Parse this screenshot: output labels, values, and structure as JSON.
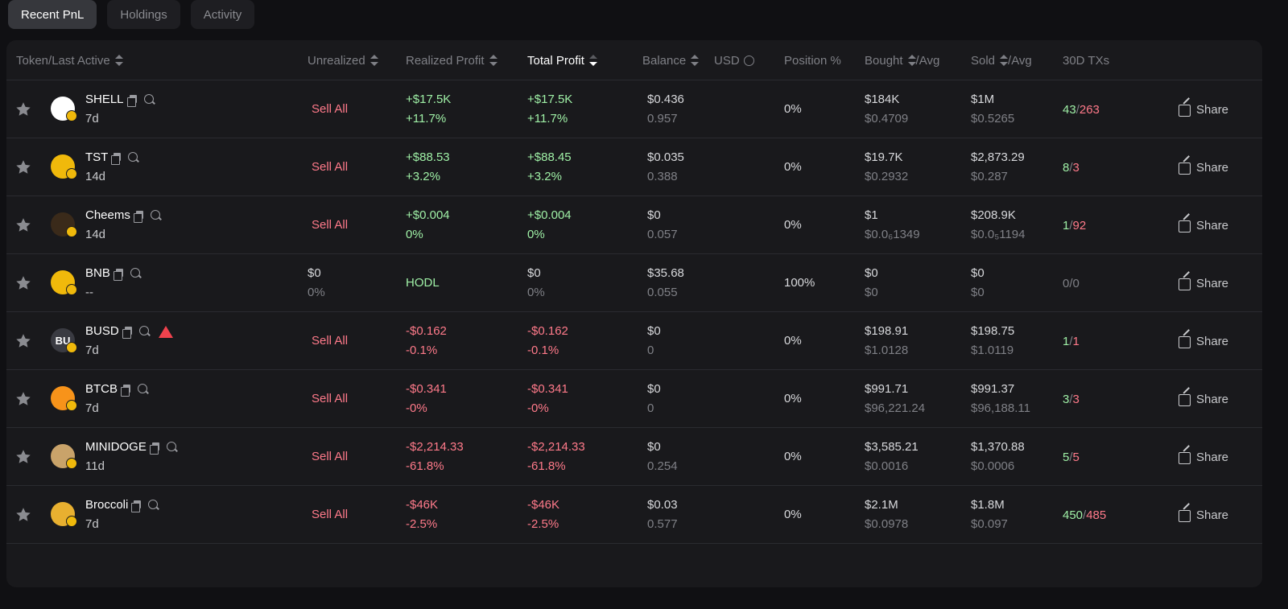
{
  "tabs": [
    {
      "label": "Recent PnL",
      "active": true
    },
    {
      "label": "Holdings",
      "active": false
    },
    {
      "label": "Activity",
      "active": false
    }
  ],
  "columns": {
    "token": "Token/Last Active",
    "unrealized": "Unrealized",
    "realized": "Realized Profit",
    "total": "Total Profit",
    "balance": "Balance",
    "usd": "USD",
    "position": "Position %",
    "bought": "Bought",
    "bought_avg": "/Avg",
    "sold": "Sold",
    "sold_avg": "/Avg",
    "txs": "30D TXs"
  },
  "colors": {
    "positive": "#9ff0a6",
    "negative": "#ff7a8a",
    "muted": "#7f8086",
    "chain_badge": "#f0b90b"
  },
  "rows": [
    {
      "token": "SHELL",
      "age": "7d",
      "avatar_icon": "shell-logo",
      "avatar_color": "#ffffff",
      "warning": false,
      "unrealized": "Sell All",
      "unrealized_sub": "",
      "unrealized_type": "sell",
      "realized": "+$17.5K",
      "realized_pct": "+11.7%",
      "realized_sign": "pos",
      "total": "+$17.5K",
      "total_pct": "+11.7%",
      "total_sign": "pos",
      "balance": "$0.436",
      "balance_amt": "0.957",
      "position": "0%",
      "bought": "$184K",
      "bought_avg": "$0.4709",
      "sold": "$1M",
      "sold_avg": "$0.5265",
      "tx_buy": "43",
      "tx_sell": "263",
      "tx_sep": "/",
      "share": "Share"
    },
    {
      "token": "TST",
      "age": "14d",
      "avatar_icon": "tst-logo",
      "avatar_color": "#f0b90b",
      "warning": false,
      "unrealized": "Sell All",
      "unrealized_sub": "",
      "unrealized_type": "sell",
      "realized": "+$88.53",
      "realized_pct": "+3.2%",
      "realized_sign": "pos",
      "total": "+$88.45",
      "total_pct": "+3.2%",
      "total_sign": "pos",
      "balance": "$0.035",
      "balance_amt": "0.388",
      "position": "0%",
      "bought": "$19.7K",
      "bought_avg": "$0.2932",
      "sold": "$2,873.29",
      "sold_avg": "$0.287",
      "tx_buy": "8",
      "tx_sell": "3",
      "tx_sep": "/",
      "share": "Share"
    },
    {
      "token": "Cheems",
      "age": "14d",
      "avatar_icon": "cheems-logo",
      "avatar_color": "#3a2a1a",
      "warning": false,
      "unrealized": "Sell All",
      "unrealized_sub": "",
      "unrealized_type": "sell",
      "realized": "+$0.004",
      "realized_pct": "0%",
      "realized_sign": "pos",
      "total": "+$0.004",
      "total_pct": "0%",
      "total_sign": "pos",
      "balance": "$0",
      "balance_amt": "0.057",
      "position": "0%",
      "bought": "$1",
      "bought_avg": "$0.0₆1349",
      "sold": "$208.9K",
      "sold_avg": "$0.0₅1194",
      "tx_buy": "1",
      "tx_sell": "92",
      "tx_sep": "/",
      "share": "Share"
    },
    {
      "token": "BNB",
      "age": "--",
      "avatar_icon": "bnb-logo",
      "avatar_color": "#f0b90b",
      "warning": false,
      "unrealized": "$0",
      "unrealized_sub": "0%",
      "unrealized_type": "value",
      "realized": "HODL",
      "realized_pct": "",
      "realized_sign": "pos",
      "total": "$0",
      "total_pct": "0%",
      "total_sign": "neutral",
      "balance": "$35.68",
      "balance_amt": "0.055",
      "position": "100%",
      "bought": "$0",
      "bought_avg": "$0",
      "sold": "$0",
      "sold_avg": "$0",
      "tx_buy": "0",
      "tx_sell": "0",
      "tx_sep": "/",
      "tx_neutral": true,
      "share": "Share"
    },
    {
      "token": "BUSD",
      "age": "7d",
      "avatar_icon": "busd-logo",
      "avatar_color": "#3a3b42",
      "avatar_text": "BU",
      "warning": true,
      "unrealized": "Sell All",
      "unrealized_sub": "",
      "unrealized_type": "sell",
      "realized": "-$0.162",
      "realized_pct": "-0.1%",
      "realized_sign": "neg",
      "total": "-$0.162",
      "total_pct": "-0.1%",
      "total_sign": "neg",
      "balance": "$0",
      "balance_amt": "0",
      "position": "0%",
      "bought": "$198.91",
      "bought_avg": "$1.0128",
      "sold": "$198.75",
      "sold_avg": "$1.0119",
      "tx_buy": "1",
      "tx_sell": "1",
      "tx_sep": "/",
      "share": "Share"
    },
    {
      "token": "BTCB",
      "age": "7d",
      "avatar_icon": "btcb-logo",
      "avatar_color": "#f7931a",
      "warning": false,
      "unrealized": "Sell All",
      "unrealized_sub": "",
      "unrealized_type": "sell",
      "realized": "-$0.341",
      "realized_pct": "-0%",
      "realized_sign": "neg",
      "total": "-$0.341",
      "total_pct": "-0%",
      "total_sign": "neg",
      "balance": "$0",
      "balance_amt": "0",
      "position": "0%",
      "bought": "$991.71",
      "bought_avg": "$96,221.24",
      "sold": "$991.37",
      "sold_avg": "$96,188.11",
      "tx_buy": "3",
      "tx_sell": "3",
      "tx_sep": "/",
      "share": "Share"
    },
    {
      "token": "MINIDOGE",
      "age": "11d",
      "avatar_icon": "minidoge-logo",
      "avatar_color": "#c9a36a",
      "warning": false,
      "unrealized": "Sell All",
      "unrealized_sub": "",
      "unrealized_type": "sell",
      "realized": "-$2,214.33",
      "realized_pct": "-61.8%",
      "realized_sign": "neg",
      "total": "-$2,214.33",
      "total_pct": "-61.8%",
      "total_sign": "neg",
      "balance": "$0",
      "balance_amt": "0.254",
      "position": "0%",
      "bought": "$3,585.21",
      "bought_avg": "$0.0016",
      "sold": "$1,370.88",
      "sold_avg": "$0.0006",
      "tx_buy": "5",
      "tx_sell": "5",
      "tx_sep": "/",
      "share": "Share"
    },
    {
      "token": "Broccoli",
      "age": "7d",
      "avatar_icon": "broccoli-logo",
      "avatar_color": "#e8b030",
      "warning": false,
      "unrealized": "Sell All",
      "unrealized_sub": "",
      "unrealized_type": "sell",
      "realized": "-$46K",
      "realized_pct": "-2.5%",
      "realized_sign": "neg",
      "total": "-$46K",
      "total_pct": "-2.5%",
      "total_sign": "neg",
      "balance": "$0.03",
      "balance_amt": "0.577",
      "position": "0%",
      "bought": "$2.1M",
      "bought_avg": "$0.0978",
      "sold": "$1.8M",
      "sold_avg": "$0.097",
      "tx_buy": "450",
      "tx_sell": "485",
      "tx_sep": "/",
      "share": "Share"
    }
  ]
}
